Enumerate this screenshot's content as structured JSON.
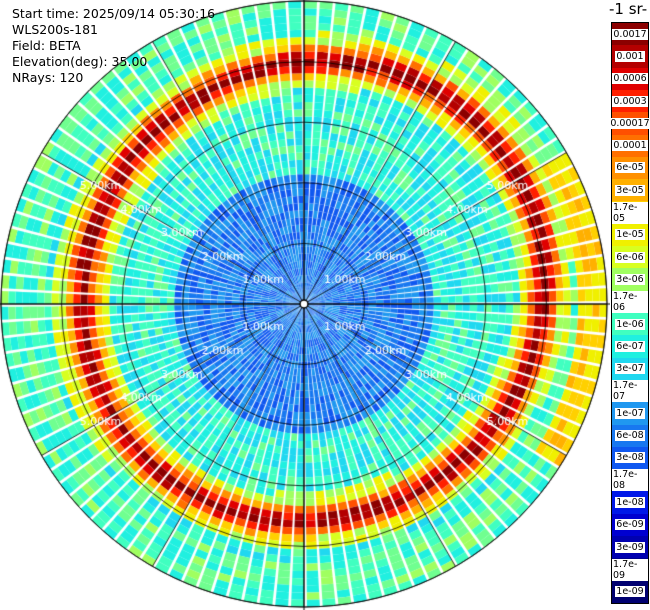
{
  "header": {
    "start_time": "Start time: 2025/09/14 05:30:16",
    "instrument": "WLS200s-181",
    "field": "Field: BETA",
    "elevation": "Elevation(deg): 35.00",
    "nrays": "NRays: 120"
  },
  "chart_data": {
    "type": "heatmap",
    "projection": "polar PPI scan",
    "field": "BETA",
    "elevation_deg": 35.0,
    "n_rays": 120,
    "range_rings_km": [
      1,
      2,
      3,
      4,
      5
    ],
    "range_ring_labels": [
      "1.00km",
      "2.00km",
      "3.00km",
      "4.00km",
      "5.00km"
    ],
    "max_range_km": 5.0,
    "features": [
      {
        "name": "aerosol layer ring",
        "range_km": 3.8,
        "beta": "1e-05 to 0.0006"
      }
    ],
    "colorbar": {
      "title": "-1 sr-",
      "ticks": [
        "0.0017",
        "0.001",
        "0.0006",
        "0.0003",
        "0.00017",
        "0.0001",
        "6e-05",
        "3e-05",
        "1.7e-05",
        "1e-05",
        "6e-06",
        "3e-06",
        "1.7e-06",
        "1e-06",
        "6e-07",
        "3e-07",
        "1.7e-07",
        "1e-07",
        "6e-08",
        "3e-08",
        "1.7e-08",
        "1e-08",
        "6e-09",
        "3e-09",
        "1.7e-09",
        "1e-09"
      ],
      "colors": [
        "#8b0000",
        "#b40000",
        "#e00000",
        "#ff2000",
        "#ff5000",
        "#ff7000",
        "#ff9000",
        "#ffb000",
        "#ffd000",
        "#f0f000",
        "#d8ff20",
        "#a0ff60",
        "#70ff90",
        "#40ffc0",
        "#20f0e0",
        "#20d8f0",
        "#20b8f0",
        "#2098f0",
        "#1878f0",
        "#1058f0",
        "#0838f0",
        "#0018e8",
        "#0000d0",
        "#0000b0",
        "#000090",
        "#000070"
      ]
    }
  }
}
